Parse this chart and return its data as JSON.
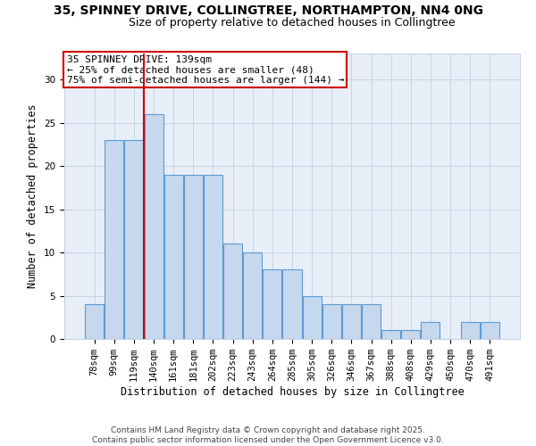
{
  "title1": "35, SPINNEY DRIVE, COLLINGTREE, NORTHAMPTON, NN4 0NG",
  "title2": "Size of property relative to detached houses in Collingtree",
  "xlabel": "Distribution of detached houses by size in Collingtree",
  "ylabel": "Number of detached properties",
  "bar_labels": [
    "78sqm",
    "99sqm",
    "119sqm",
    "140sqm",
    "161sqm",
    "181sqm",
    "202sqm",
    "223sqm",
    "243sqm",
    "264sqm",
    "285sqm",
    "305sqm",
    "326sqm",
    "346sqm",
    "367sqm",
    "388sqm",
    "408sqm",
    "429sqm",
    "450sqm",
    "470sqm",
    "491sqm"
  ],
  "bar_values": [
    4,
    23,
    23,
    26,
    19,
    19,
    19,
    11,
    10,
    8,
    8,
    5,
    4,
    4,
    4,
    1,
    1,
    2,
    0,
    2,
    2
  ],
  "bar_color": "#c5d8ed",
  "bar_edgecolor": "#5b9bd5",
  "vline_color": "#cc0000",
  "annotation_title": "35 SPINNEY DRIVE: 139sqm",
  "annotation_line1": "← 25% of detached houses are smaller (48)",
  "annotation_line2": "75% of semi-detached houses are larger (144) →",
  "annotation_box_color": "#cc0000",
  "ylim": [
    0,
    33
  ],
  "yticks": [
    0,
    5,
    10,
    15,
    20,
    25,
    30
  ],
  "grid_color": "#c8d4e3",
  "bg_color": "#e8eef8",
  "footer": "Contains HM Land Registry data © Crown copyright and database right 2025.\nContains public sector information licensed under the Open Government Licence v3.0.",
  "title1_fontsize": 10,
  "title2_fontsize": 9,
  "xlabel_fontsize": 8.5,
  "ylabel_fontsize": 8.5,
  "annotation_fontsize": 8,
  "tick_fontsize": 7.5
}
